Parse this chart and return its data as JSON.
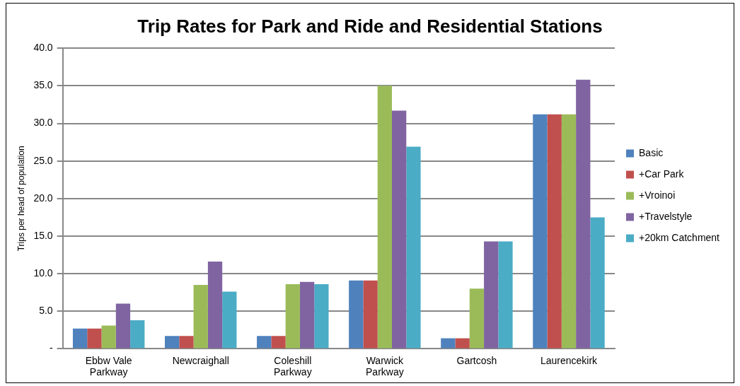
{
  "chart_data": {
    "type": "bar",
    "title": "Trip Rates for Park and Ride and Residential Stations",
    "ylabel": "Trips per head of population",
    "categories": [
      "Ebbw Vale Parkway",
      "Newcraighall",
      "Coleshill Parkway",
      "Warwick Parkway",
      "Gartcosh",
      "Laurencekirk"
    ],
    "series": [
      {
        "name": "Basic",
        "color": "#4f81bd",
        "values": [
          2.7,
          1.7,
          1.7,
          9.1,
          1.4,
          31.2
        ]
      },
      {
        "name": "+Car Park",
        "color": "#c0504d",
        "values": [
          2.7,
          1.7,
          1.7,
          9.1,
          1.4,
          31.2
        ]
      },
      {
        "name": "+Vroinoi",
        "color": "#9bbb59",
        "values": [
          3.1,
          8.5,
          8.6,
          35.0,
          8.0,
          31.2
        ]
      },
      {
        "name": "+Travelstyle",
        "color": "#8064a2",
        "values": [
          6.0,
          11.6,
          8.9,
          31.7,
          14.3,
          35.8
        ]
      },
      {
        "name": "+20km Catchment",
        "color": "#4bacc6",
        "values": [
          3.8,
          7.6,
          8.6,
          26.9,
          14.3,
          17.5
        ]
      }
    ],
    "ylim": [
      0,
      40
    ],
    "yticks": [
      {
        "value": 0,
        "label": "-"
      },
      {
        "value": 5,
        "label": "5.0"
      },
      {
        "value": 10,
        "label": "10.0"
      },
      {
        "value": 15,
        "label": "15.0"
      },
      {
        "value": 20,
        "label": "20.0"
      },
      {
        "value": 25,
        "label": "25.0"
      },
      {
        "value": 30,
        "label": "30.0"
      },
      {
        "value": 35,
        "label": "35.0"
      },
      {
        "value": 40,
        "label": "40.0"
      }
    ],
    "grid": "y",
    "legend": "right"
  }
}
